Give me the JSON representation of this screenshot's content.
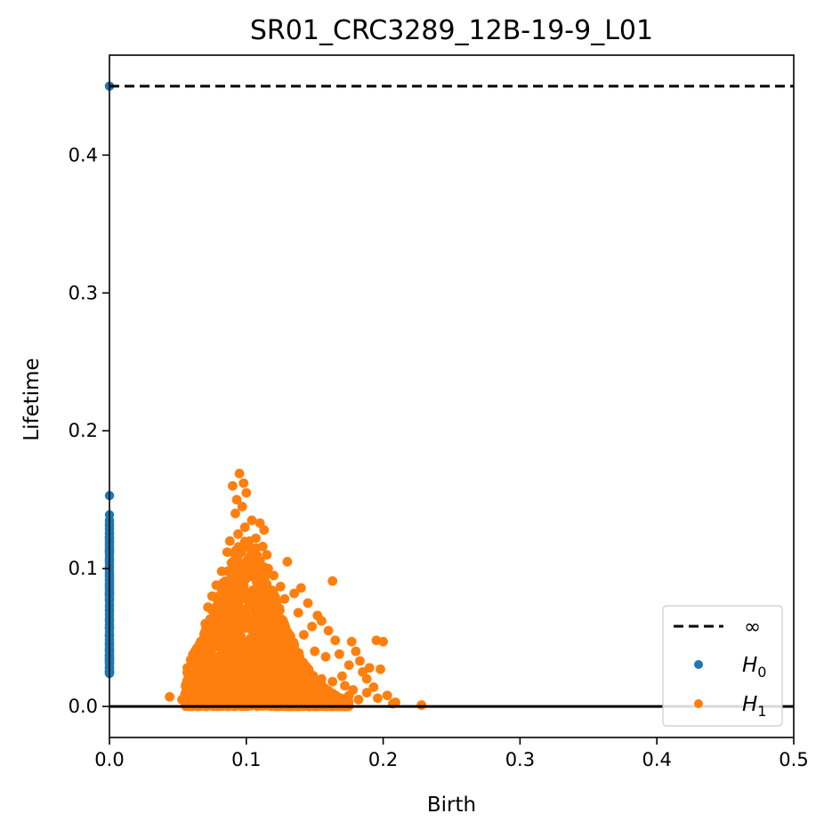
{
  "chart_data": {
    "type": "scatter",
    "title": "SR01_CRC3289_12B-19-9_L01",
    "xlabel": "Birth",
    "ylabel": "Lifetime",
    "xlim": [
      0.0,
      0.5
    ],
    "ylim": [
      -0.0225,
      0.4725
    ],
    "x_ticks": [
      "0.0",
      "0.1",
      "0.2",
      "0.3",
      "0.4",
      "0.5"
    ],
    "y_ticks": [
      "0.0",
      "0.1",
      "0.2",
      "0.3",
      "0.4"
    ],
    "grid": false,
    "legend_position": "bottom-right",
    "infinity_line": {
      "label": "∞",
      "y": 0.45,
      "style": "dashed",
      "color": "#000000"
    },
    "zero_line": {
      "y": 0.0,
      "color": "#000000"
    },
    "legend": [
      {
        "kind": "line",
        "label": "∞",
        "color": "#000000"
      },
      {
        "kind": "marker",
        "label_base": "H",
        "label_sub": "0",
        "color": "#1f77b4"
      },
      {
        "kind": "marker",
        "label_base": "H",
        "label_sub": "1",
        "color": "#ff7f0e"
      }
    ],
    "series": [
      {
        "name": "H0",
        "color": "#1f77b4",
        "points": [
          [
            0.0,
            0.45
          ],
          [
            0.0,
            0.153
          ],
          [
            0.0,
            0.139
          ],
          [
            0.0,
            0.135
          ],
          [
            0.0,
            0.128
          ],
          [
            0.0,
            0.122
          ],
          [
            0.0,
            0.117
          ],
          [
            0.0,
            0.112
          ],
          [
            0.0,
            0.107
          ],
          [
            0.0,
            0.102
          ],
          [
            0.0,
            0.097
          ],
          [
            0.0,
            0.092
          ],
          [
            0.0,
            0.087
          ],
          [
            0.0,
            0.082
          ],
          [
            0.0,
            0.077
          ],
          [
            0.0,
            0.072
          ],
          [
            0.0,
            0.067
          ],
          [
            0.0,
            0.062
          ],
          [
            0.0,
            0.057
          ],
          [
            0.0,
            0.052
          ],
          [
            0.0,
            0.047
          ],
          [
            0.0,
            0.042
          ],
          [
            0.0,
            0.037
          ],
          [
            0.0,
            0.032
          ],
          [
            0.0,
            0.028
          ],
          [
            0.0,
            0.024
          ]
        ]
      },
      {
        "name": "H1",
        "color": "#ff7f0e",
        "points": [
          [
            0.095,
            0.169
          ],
          [
            0.098,
            0.162
          ],
          [
            0.09,
            0.16
          ],
          [
            0.1,
            0.155
          ],
          [
            0.093,
            0.15
          ],
          [
            0.097,
            0.145
          ],
          [
            0.092,
            0.14
          ],
          [
            0.104,
            0.135
          ],
          [
            0.11,
            0.133
          ],
          [
            0.099,
            0.13
          ],
          [
            0.113,
            0.128
          ],
          [
            0.094,
            0.125
          ],
          [
            0.107,
            0.122
          ],
          [
            0.088,
            0.12
          ],
          [
            0.112,
            0.116
          ],
          [
            0.086,
            0.112
          ],
          [
            0.115,
            0.11
          ],
          [
            0.13,
            0.105
          ],
          [
            0.116,
            0.1
          ],
          [
            0.082,
            0.098
          ],
          [
            0.12,
            0.095
          ],
          [
            0.163,
            0.091
          ],
          [
            0.078,
            0.088
          ],
          [
            0.125,
            0.087
          ],
          [
            0.14,
            0.086
          ],
          [
            0.135,
            0.082
          ],
          [
            0.075,
            0.08
          ],
          [
            0.128,
            0.078
          ],
          [
            0.145,
            0.075
          ],
          [
            0.152,
            0.066
          ],
          [
            0.072,
            0.072
          ],
          [
            0.138,
            0.068
          ],
          [
            0.155,
            0.062
          ],
          [
            0.148,
            0.058
          ],
          [
            0.16,
            0.055
          ],
          [
            0.07,
            0.06
          ],
          [
            0.142,
            0.052
          ],
          [
            0.165,
            0.048
          ],
          [
            0.177,
            0.047
          ],
          [
            0.195,
            0.048
          ],
          [
            0.2,
            0.047
          ],
          [
            0.18,
            0.04
          ],
          [
            0.168,
            0.038
          ],
          [
            0.158,
            0.036
          ],
          [
            0.183,
            0.033
          ],
          [
            0.175,
            0.03
          ],
          [
            0.19,
            0.028
          ],
          [
            0.068,
            0.045
          ],
          [
            0.15,
            0.04
          ],
          [
            0.198,
            0.027
          ],
          [
            0.185,
            0.025
          ],
          [
            0.17,
            0.022
          ],
          [
            0.188,
            0.02
          ],
          [
            0.163,
            0.018
          ],
          [
            0.172,
            0.015
          ],
          [
            0.178,
            0.012
          ],
          [
            0.193,
            0.014
          ],
          [
            0.188,
            0.01
          ],
          [
            0.203,
            0.008
          ],
          [
            0.196,
            0.006
          ],
          [
            0.182,
            0.005
          ],
          [
            0.175,
            0.008
          ],
          [
            0.209,
            0.003
          ],
          [
            0.228,
            0.001
          ],
          [
            0.207,
            0.002
          ],
          [
            0.065,
            0.03
          ],
          [
            0.063,
            0.022
          ],
          [
            0.06,
            0.018
          ],
          [
            0.062,
            0.012
          ],
          [
            0.059,
            0.008
          ],
          [
            0.056,
            0.01
          ],
          [
            0.053,
            0.005
          ],
          [
            0.044,
            0.007
          ],
          [
            0.058,
            0.003
          ],
          [
            0.066,
            0.015
          ],
          [
            0.064,
            0.028
          ],
          [
            0.061,
            0.025
          ],
          [
            0.067,
            0.035
          ],
          [
            0.155,
            0.02
          ],
          [
            0.16,
            0.01
          ],
          [
            0.15,
            0.012
          ],
          [
            0.145,
            0.005
          ],
          [
            0.165,
            0.005
          ],
          [
            0.14,
            0.015
          ]
        ],
        "dense_region": {
          "x_range": [
            0.055,
            0.175
          ],
          "peak_x": 0.1,
          "peak_lifetime": 0.125,
          "baseline_lifetime": 0.0
        }
      }
    ]
  }
}
